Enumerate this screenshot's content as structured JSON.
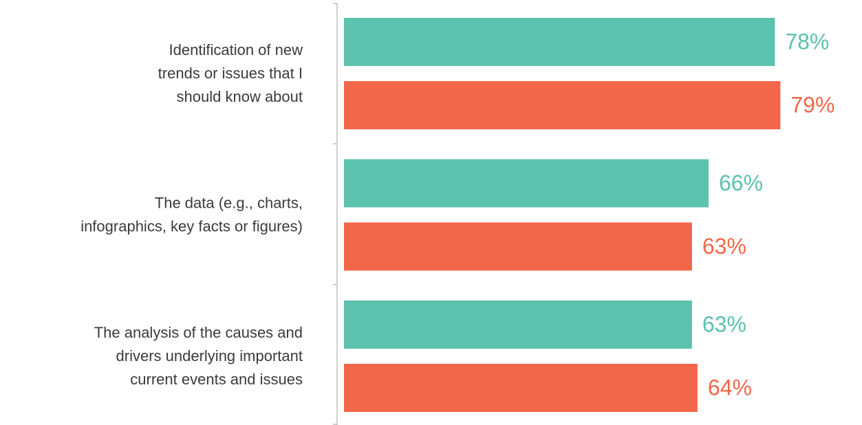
{
  "chart_data": {
    "type": "bar",
    "orientation": "horizontal",
    "categories": [
      "Identification of new\ntrends or issues that I\nshould know about",
      "The data (e.g., charts,\ninfographics, key facts or figures)",
      "The analysis of the causes and\ndrivers underlying important\ncurrent events and issues"
    ],
    "series": [
      {
        "color": "#5bc2ad",
        "values": [
          78,
          66,
          63
        ],
        "value_labels": [
          "78%",
          "66%",
          "63%"
        ]
      },
      {
        "color": "#f2674a",
        "values": [
          79,
          63,
          64
        ],
        "value_labels": [
          "79%",
          "63%",
          "64%"
        ]
      }
    ],
    "xlim": [
      0,
      100
    ]
  }
}
